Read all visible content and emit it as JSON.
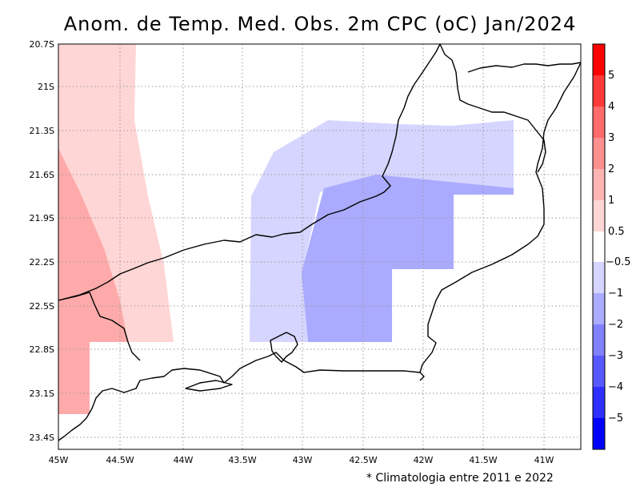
{
  "title": "Anom. de Temp. Med. Obs. 2m CPC (oC) Jan/2024",
  "footnote": "* Climatologia entre 2011 e 2022",
  "axes": {
    "x_ticks": [
      "45W",
      "44.5W",
      "44W",
      "43.5W",
      "43W",
      "42.5W",
      "42W",
      "41.5W",
      "41W"
    ],
    "y_ticks": [
      "20.7S",
      "21S",
      "21.3S",
      "21.6S",
      "21.9S",
      "22.2S",
      "22.5S",
      "22.8S",
      "23.1S",
      "23.4S"
    ],
    "lon_range": [
      -45,
      -40.7
    ],
    "lat_range": [
      -23.45,
      -20.7
    ],
    "grid": true
  },
  "colorbar": {
    "labels": [
      "5",
      "4",
      "3",
      "2",
      "1",
      "0.5",
      "−0.5",
      "−1",
      "−2",
      "−3",
      "−4",
      "−5"
    ],
    "colors": [
      "#ff0000",
      "#ff3a3a",
      "#ff6a6a",
      "#ff9090",
      "#ffb4b4",
      "#ffd6d6",
      "#ffffff",
      "#d5d5ff",
      "#ababff",
      "#8181ff",
      "#5858ff",
      "#2e2eff",
      "#0000ff"
    ]
  },
  "anomaly_regions": [
    {
      "class": "0.5 to 1",
      "color": "#ffd6d6"
    },
    {
      "class": "1 to 2",
      "color": "#ffaaaa"
    },
    {
      "class": "-1 to -0.5",
      "color": "#d5d5ff"
    },
    {
      "class": "-2 to -1",
      "color": "#aaaaff"
    }
  ]
}
